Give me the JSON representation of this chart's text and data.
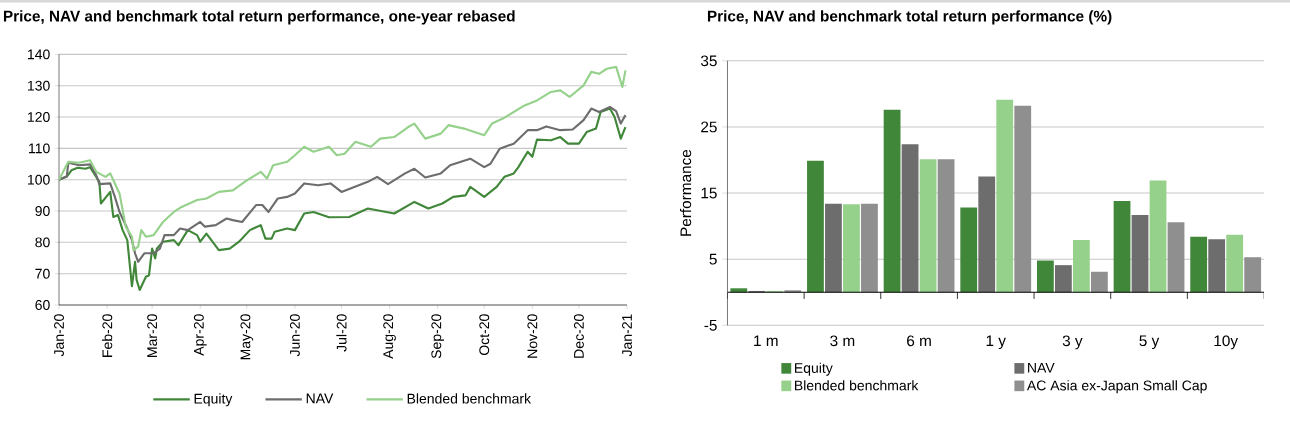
{
  "chart_data": [
    {
      "type": "line",
      "title": "Price, NAV and benchmark total return performance, one-year rebased",
      "xlim": [
        "2020-01-01",
        "2021-01-01"
      ],
      "xticks": [
        {
          "value": "2020-01-01",
          "label": "Jan-20"
        },
        {
          "value": "2020-02-01",
          "label": "Feb-20"
        },
        {
          "value": "2020-03-01",
          "label": "Mar-20"
        },
        {
          "value": "2020-04-01",
          "label": "Apr-20"
        },
        {
          "value": "2020-05-01",
          "label": "May-20"
        },
        {
          "value": "2020-06-01",
          "label": "Jun-20"
        },
        {
          "value": "2020-07-01",
          "label": "Jul-20"
        },
        {
          "value": "2020-08-01",
          "label": "Aug-20"
        },
        {
          "value": "2020-09-01",
          "label": "Sep-20"
        },
        {
          "value": "2020-10-01",
          "label": "Oct-20"
        },
        {
          "value": "2020-11-01",
          "label": "Nov-20"
        },
        {
          "value": "2020-12-01",
          "label": "Dec-20"
        },
        {
          "value": "2021-01-01",
          "label": "Jan-21"
        }
      ],
      "ylim": [
        60,
        140
      ],
      "yticks": [
        60,
        70,
        80,
        90,
        100,
        110,
        120,
        130,
        140
      ],
      "grid": "y",
      "legend": "bottom",
      "line_style": "solid",
      "series": [
        {
          "name": "Equity",
          "color": "#41873a",
          "x": [
            "2020-01-01",
            "2020-01-06",
            "2020-01-09",
            "2020-01-13",
            "2020-01-18",
            "2020-01-21",
            "2020-01-25",
            "2020-01-27",
            "2020-01-28",
            "2020-02-03",
            "2020-02-05",
            "2020-02-08",
            "2020-02-11",
            "2020-02-14",
            "2020-02-17",
            "2020-02-19",
            "2020-02-20",
            "2020-02-22",
            "2020-02-26",
            "2020-02-28",
            "2020-03-01",
            "2020-03-03",
            "2020-03-04",
            "2020-03-08",
            "2020-03-15",
            "2020-03-18",
            "2020-03-24",
            "2020-03-30",
            "2020-04-01",
            "2020-04-05",
            "2020-04-13",
            "2020-04-20",
            "2020-04-26",
            "2020-05-03",
            "2020-05-10",
            "2020-05-13",
            "2020-05-17",
            "2020-05-19",
            "2020-05-27",
            "2020-06-01",
            "2020-06-07",
            "2020-06-13",
            "2020-06-23",
            "2020-07-06",
            "2020-07-18",
            "2020-08-04",
            "2020-08-17",
            "2020-08-26",
            "2020-09-04",
            "2020-09-11",
            "2020-09-19",
            "2020-09-22",
            "2020-10-01",
            "2020-10-09",
            "2020-10-14",
            "2020-10-20",
            "2020-10-23",
            "2020-10-29",
            "2020-11-01",
            "2020-11-04",
            "2020-11-13",
            "2020-11-19",
            "2020-11-24",
            "2020-12-01",
            "2020-12-06",
            "2020-12-12",
            "2020-12-15",
            "2020-12-21",
            "2020-12-24",
            "2020-12-28",
            "2020-12-31"
          ],
          "values": [
            100,
            101,
            103,
            103.8,
            103.5,
            104,
            100.9,
            99.3,
            92.4,
            96.1,
            88.1,
            88.7,
            83.9,
            80.7,
            66,
            73.8,
            68,
            64.8,
            69,
            69.5,
            78,
            74.9,
            78,
            80.2,
            80.7,
            79.1,
            83.9,
            82.3,
            80.2,
            82.8,
            77.5,
            78,
            80.2,
            83.9,
            85.5,
            81.2,
            81.2,
            83.4,
            84.4,
            83.9,
            89.2,
            89.7,
            88,
            88.1,
            90.8,
            89.2,
            92.9,
            90.8,
            92.4,
            94.5,
            95,
            97.7,
            94.5,
            97.7,
            100.9,
            102,
            104,
            108.9,
            107.3,
            112.8,
            112.6,
            113.6,
            111.5,
            111.5,
            115.2,
            116.3,
            121.6,
            122.7,
            120,
            113.1,
            116.8
          ]
        },
        {
          "name": "NAV",
          "color": "#6d6d6d",
          "x": [
            "2020-01-01",
            "2020-01-06",
            "2020-01-07",
            "2020-01-14",
            "2020-01-21",
            "2020-01-25",
            "2020-01-27",
            "2020-02-03",
            "2020-02-06",
            "2020-02-09",
            "2020-02-14",
            "2020-02-17",
            "2020-02-19",
            "2020-02-21",
            "2020-02-25",
            "2020-03-02",
            "2020-03-06",
            "2020-03-09",
            "2020-03-15",
            "2020-03-19",
            "2020-03-24",
            "2020-04-01",
            "2020-04-04",
            "2020-04-11",
            "2020-04-18",
            "2020-04-22",
            "2020-04-28",
            "2020-05-07",
            "2020-05-11",
            "2020-05-15",
            "2020-05-21",
            "2020-05-27",
            "2020-06-01",
            "2020-06-07",
            "2020-06-16",
            "2020-06-24",
            "2020-07-01",
            "2020-07-18",
            "2020-07-24",
            "2020-07-31",
            "2020-08-11",
            "2020-08-17",
            "2020-08-24",
            "2020-09-03",
            "2020-09-09",
            "2020-09-22",
            "2020-10-01",
            "2020-10-05",
            "2020-10-11",
            "2020-10-20",
            "2020-10-29",
            "2020-11-04",
            "2020-11-10",
            "2020-11-19",
            "2020-11-27",
            "2020-12-04",
            "2020-12-09",
            "2020-12-14",
            "2020-12-21",
            "2020-12-25",
            "2020-12-28",
            "2020-12-31"
          ],
          "values": [
            100,
            101,
            105.4,
            104.6,
            104.9,
            101.4,
            98.6,
            98.8,
            94.5,
            89.7,
            84.4,
            80.7,
            76.5,
            73.8,
            76.5,
            76.5,
            78,
            82.3,
            82.3,
            84.4,
            83.9,
            86.5,
            85,
            85.5,
            87.6,
            87.1,
            86.5,
            91.9,
            91.9,
            89.7,
            94,
            94.5,
            95.6,
            98.8,
            98.2,
            98.8,
            96.1,
            99.3,
            100.9,
            98.6,
            102,
            103.5,
            100.7,
            102,
            104.6,
            106.7,
            104,
            105.1,
            109.9,
            111.5,
            115.8,
            115.8,
            117,
            115.8,
            116,
            119,
            122.7,
            121.6,
            123.2,
            121.9,
            117.9,
            120.6
          ]
        },
        {
          "name": "Blended benchmark",
          "color": "#95d18b",
          "x": [
            "2020-01-01",
            "2020-01-07",
            "2020-01-14",
            "2020-01-21",
            "2020-01-25",
            "2020-01-31",
            "2020-02-03",
            "2020-02-06",
            "2020-02-09",
            "2020-02-13",
            "2020-02-17",
            "2020-02-18",
            "2020-02-21",
            "2020-02-23",
            "2020-02-26",
            "2020-03-02",
            "2020-03-08",
            "2020-03-15",
            "2020-03-20",
            "2020-03-30",
            "2020-04-05",
            "2020-04-13",
            "2020-04-22",
            "2020-05-01",
            "2020-05-10",
            "2020-05-14",
            "2020-05-18",
            "2020-05-27",
            "2020-06-01",
            "2020-06-07",
            "2020-06-13",
            "2020-06-23",
            "2020-06-28",
            "2020-07-03",
            "2020-07-10",
            "2020-07-20",
            "2020-07-26",
            "2020-08-04",
            "2020-08-13",
            "2020-08-17",
            "2020-08-24",
            "2020-09-03",
            "2020-09-08",
            "2020-09-18",
            "2020-10-01",
            "2020-10-06",
            "2020-10-13",
            "2020-10-27",
            "2020-11-04",
            "2020-11-13",
            "2020-11-19",
            "2020-11-25",
            "2020-12-04",
            "2020-12-09",
            "2020-12-14",
            "2020-12-19",
            "2020-12-25",
            "2020-12-29",
            "2020-12-31"
          ],
          "values": [
            100,
            105.7,
            105.4,
            106.2,
            102.5,
            100.9,
            102,
            98.8,
            95.6,
            85,
            81.8,
            77.5,
            78.6,
            83.9,
            81.8,
            82.3,
            86.5,
            89.7,
            91.3,
            93.5,
            94,
            96.1,
            96.6,
            99.8,
            102.5,
            100.4,
            104.6,
            105.7,
            107.8,
            110.5,
            108.9,
            110.5,
            107.8,
            108.3,
            112.1,
            110.5,
            113.1,
            113.6,
            116.8,
            117.9,
            113.1,
            114.7,
            117.4,
            116.3,
            114.2,
            117.9,
            119.5,
            123.7,
            125.3,
            128,
            128.5,
            126.4,
            130.1,
            134.4,
            133.8,
            135.4,
            136,
            129.6,
            134.9
          ]
        }
      ]
    },
    {
      "type": "bar",
      "title": "Price, NAV and benchmark total return performance (%)",
      "ylabel": "Performance",
      "categories": [
        "1 m",
        "3 m",
        "6 m",
        "1 y",
        "3 y",
        "5 y",
        "10y"
      ],
      "ylim": [
        -5,
        35
      ],
      "yticks": [
        -5,
        5,
        15,
        25,
        35
      ],
      "grid": "y",
      "legend": "bottom",
      "series": [
        {
          "name": "Equity",
          "color": "#41873a",
          "values": [
            0.6,
            19.9,
            27.6,
            12.8,
            4.8,
            13.8,
            8.4
          ]
        },
        {
          "name": "NAV",
          "color": "#6d6d6d",
          "values": [
            0.2,
            13.4,
            22.4,
            17.5,
            4.1,
            11.7,
            8.0
          ]
        },
        {
          "name": "Blended benchmark",
          "color": "#95d18b",
          "values": [
            0.2,
            13.3,
            20.1,
            29.1,
            7.9,
            16.9,
            8.7
          ]
        },
        {
          "name": "AC Asia ex-Japan Small Cap",
          "color": "#8f8f8f",
          "values": [
            0.3,
            13.4,
            20.1,
            28.2,
            3.1,
            10.6,
            5.3
          ]
        }
      ]
    }
  ]
}
